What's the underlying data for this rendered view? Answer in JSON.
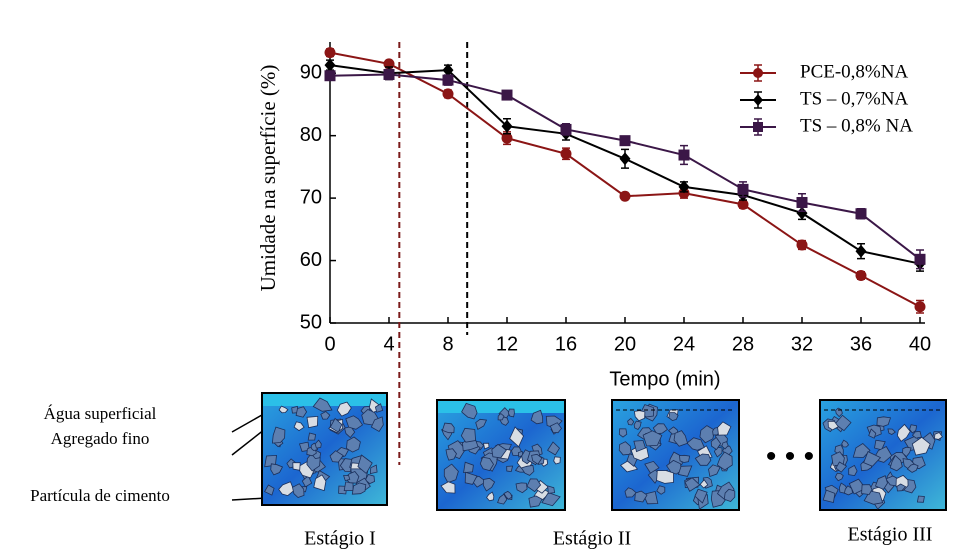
{
  "chart_data": {
    "type": "line",
    "y_label": "Umidade na superfície (%)",
    "x_label": "Tempo (min)",
    "x": [
      0,
      4,
      8,
      12,
      16,
      20,
      24,
      28,
      32,
      36,
      40
    ],
    "xlim": [
      0,
      40
    ],
    "xticks": [
      0,
      4,
      8,
      12,
      16,
      20,
      24,
      28,
      32,
      36,
      40
    ],
    "ylim": [
      50,
      95
    ],
    "yticks": [
      50,
      60,
      70,
      80,
      90
    ],
    "legend": "upper right",
    "vlines": [
      {
        "x": 4.7,
        "color": "#7a1a1a"
      },
      {
        "x": 9.3,
        "color": "#000000"
      }
    ],
    "series": [
      {
        "name": "PCE-0,8%NA",
        "color": "#8b1515",
        "marker": "circle",
        "values": [
          93.3,
          91.5,
          86.7,
          79.6,
          77.1,
          70.3,
          70.8,
          69.0,
          62.5,
          57.6,
          52.6
        ],
        "errors": [
          0.6,
          0.5,
          0.6,
          1.0,
          0.9,
          0.5,
          0.8,
          0.6,
          0.7,
          0.6,
          1.0
        ]
      },
      {
        "name": "TS – 0,7%NA",
        "color": "#000000",
        "marker": "diamond",
        "values": [
          91.3,
          90.0,
          90.5,
          81.5,
          80.3,
          76.3,
          71.8,
          70.5,
          67.6,
          61.5,
          59.5
        ],
        "errors": [
          0.8,
          1.0,
          0.8,
          1.2,
          1.0,
          1.5,
          0.8,
          0.8,
          1.0,
          1.2,
          1.2
        ]
      },
      {
        "name": "TS – 0,8% NA",
        "color": "#3b1747",
        "marker": "square",
        "values": [
          89.6,
          89.8,
          88.9,
          86.5,
          81.0,
          79.2,
          76.9,
          71.4,
          69.3,
          67.5,
          60.2
        ],
        "errors": [
          0.6,
          0.8,
          0.8,
          0.6,
          0.9,
          0.6,
          1.5,
          1.2,
          1.4,
          0.8,
          1.5
        ]
      }
    ]
  },
  "illustration": {
    "annotations": [
      "Água superficial",
      "Agregado fino",
      "Partícula de cimento"
    ],
    "stages": [
      "Estágio I",
      "Estágio II",
      "Estágio III"
    ]
  }
}
